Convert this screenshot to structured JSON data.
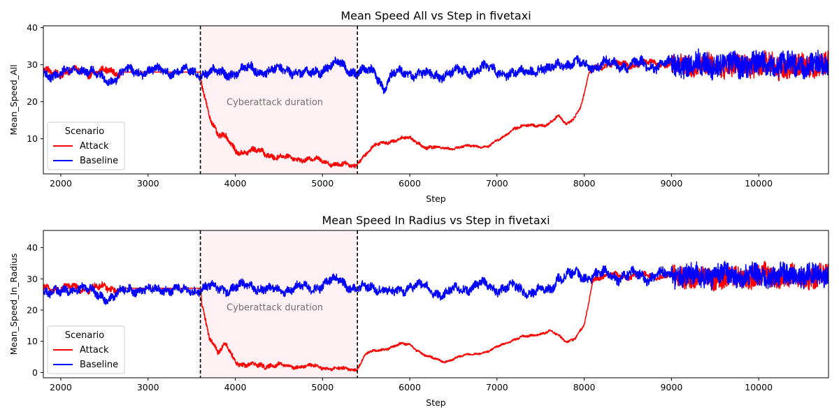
{
  "chart_data": [
    {
      "type": "line",
      "title": "Mean Speed All vs Step in fivetaxi",
      "xlabel": "Step",
      "ylabel": "Mean_Speed_All",
      "xlim": [
        1800,
        10800
      ],
      "ylim": [
        0.5,
        40.5
      ],
      "xticks": [
        2000,
        3000,
        4000,
        5000,
        6000,
        7000,
        8000,
        9000,
        10000
      ],
      "yticks": [
        10,
        20,
        30,
        40
      ],
      "legend": {
        "title": "Scenario",
        "position": "lower-left"
      },
      "attack_window": {
        "start": 3600,
        "end": 5400,
        "label": "Cyberattack duration",
        "label_pos": [
          3900,
          20
        ]
      },
      "series": [
        {
          "name": "Attack",
          "color": "#ff0000",
          "noise": [
            1.2,
            0,
            1.0,
            0.8,
            0.6,
            0.4,
            0.5,
            1.0,
            4.0,
            4.5
          ],
          "x": [
            1800,
            3600,
            3620,
            3700,
            3800,
            3900,
            4000,
            4100,
            4300,
            4500,
            4800,
            5000,
            5200,
            5380,
            5410,
            5500,
            5600,
            5700,
            5900,
            6000,
            6100,
            6200,
            6500,
            6700,
            6900,
            7050,
            7200,
            7400,
            7600,
            7700,
            7800,
            7850,
            7950,
            8000,
            8050,
            8100,
            8200,
            8400,
            8800,
            9200,
            9600,
            10000,
            10400,
            10800
          ],
          "y": [
            28,
            28,
            24,
            17,
            11,
            10,
            7,
            6.5,
            6.5,
            5,
            4.5,
            4,
            3,
            2.5,
            4,
            6,
            8,
            9,
            10,
            10,
            9,
            7.5,
            7.5,
            8,
            8,
            10,
            13,
            13.5,
            14,
            16,
            14,
            15,
            18,
            22,
            27,
            29,
            30,
            30,
            30.5,
            30,
            29.5,
            30,
            29.5,
            30
          ]
        },
        {
          "name": "Baseline",
          "color": "#0000ff",
          "noise": [
            1.5,
            1.5,
            1.6,
            1.6,
            1.6,
            1.6,
            1.6,
            1.7,
            4.5,
            4.5
          ],
          "x": [
            1800,
            2000,
            2200,
            2400,
            2600,
            2800,
            3000,
            3200,
            3400,
            3600,
            3800,
            4000,
            4200,
            4400,
            4600,
            4800,
            5000,
            5200,
            5400,
            5600,
            5700,
            5800,
            6000,
            6200,
            6400,
            6600,
            6800,
            7000,
            7200,
            7400,
            7600,
            7700,
            7800,
            8000,
            8400,
            8800,
            9200,
            9600,
            10000,
            10400,
            10800
          ],
          "y": [
            28,
            27,
            29.5,
            27,
            26,
            28.5,
            28,
            28.5,
            28,
            28,
            27.5,
            28,
            29,
            28,
            29,
            27,
            29,
            30,
            28,
            28,
            24,
            27,
            28,
            27,
            27.5,
            28,
            29,
            28.5,
            27,
            29,
            28,
            31,
            30,
            30,
            30,
            30,
            30,
            30,
            30,
            30,
            30
          ]
        }
      ]
    },
    {
      "type": "line",
      "title": "Mean Speed In Radius vs Step in fivetaxi",
      "xlabel": "Step",
      "ylabel": "Mean_Speed_In_Radius",
      "xlim": [
        1800,
        10800
      ],
      "ylim": [
        -1.7,
        45.5
      ],
      "xticks": [
        2000,
        3000,
        4000,
        5000,
        6000,
        7000,
        8000,
        9000,
        10000
      ],
      "yticks": [
        0,
        10,
        20,
        30,
        40
      ],
      "legend": {
        "title": "Scenario",
        "position": "lower-left"
      },
      "attack_window": {
        "start": 3600,
        "end": 5400,
        "label": "Cyberattack duration",
        "label_pos": [
          3900,
          21
        ]
      },
      "series": [
        {
          "name": "Attack",
          "color": "#ff0000",
          "noise": [
            1.4,
            0,
            1.0,
            0.7,
            0.5,
            0.4,
            0.5,
            1.0,
            4.5,
            5.0
          ],
          "x": [
            1800,
            3600,
            3620,
            3700,
            3800,
            3900,
            4000,
            4100,
            4300,
            4600,
            4900,
            5200,
            5380,
            5410,
            5500,
            5700,
            5900,
            6000,
            6100,
            6200,
            6400,
            6700,
            6900,
            7050,
            7200,
            7400,
            7600,
            7700,
            7800,
            7900,
            8000,
            8050,
            8100,
            8200,
            8400,
            8800,
            9200,
            9600,
            10000,
            10400,
            10800
          ],
          "y": [
            27,
            27,
            22,
            12,
            6,
            9,
            4,
            2,
            2.5,
            2,
            2,
            1,
            1,
            2,
            6,
            7.5,
            9,
            9,
            7,
            5,
            3.5,
            6,
            6.5,
            9,
            10.5,
            12,
            13,
            12,
            10,
            11,
            15,
            22,
            30,
            31,
            31,
            31,
            30.5,
            30,
            31,
            30.5,
            31
          ]
        },
        {
          "name": "Baseline",
          "color": "#0000ff",
          "noise": [
            1.8,
            1.8,
            1.8,
            1.8,
            1.8,
            1.8,
            2.0,
            2.2,
            5.0,
            5.0
          ],
          "x": [
            1800,
            2000,
            2200,
            2400,
            2600,
            2800,
            3000,
            3200,
            3400,
            3600,
            3800,
            4000,
            4200,
            4400,
            4600,
            4800,
            5000,
            5200,
            5400,
            5600,
            5800,
            6000,
            6200,
            6400,
            6600,
            6800,
            7000,
            7200,
            7400,
            7600,
            7700,
            7800,
            8000,
            8400,
            8800,
            9200,
            9600,
            10000,
            10400,
            10800
          ],
          "y": [
            27,
            25,
            28,
            25,
            24,
            27,
            26,
            27,
            26,
            27,
            27,
            27,
            28,
            26,
            27,
            27,
            28,
            30,
            26,
            28,
            25,
            28,
            27,
            25,
            27,
            28,
            27,
            27,
            26,
            26,
            31,
            31,
            31,
            31,
            31,
            31,
            31,
            31,
            31,
            31
          ]
        }
      ]
    }
  ]
}
